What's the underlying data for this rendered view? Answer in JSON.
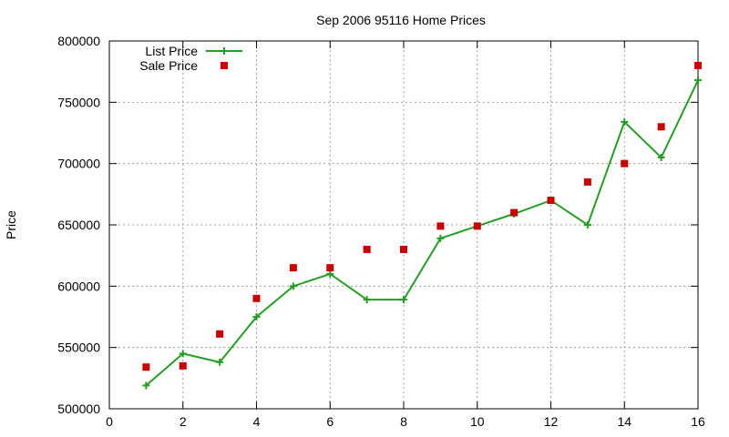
{
  "chart_data": {
    "type": "line",
    "title": "Sep 2006 95116 Home Prices",
    "xlabel": "",
    "ylabel": "Price",
    "xlim": [
      0,
      16
    ],
    "ylim": [
      500000,
      800000
    ],
    "x_ticks": [
      0,
      2,
      4,
      6,
      8,
      10,
      12,
      14,
      16
    ],
    "y_ticks": [
      500000,
      550000,
      600000,
      650000,
      700000,
      750000,
      800000
    ],
    "grid": true,
    "legend_position": "top-left",
    "series": [
      {
        "name": "List Price",
        "style": "line+cross",
        "color": "#22a022",
        "x": [
          1,
          2,
          3,
          4,
          5,
          6,
          7,
          8,
          9,
          10,
          11,
          12,
          13,
          14,
          15,
          16
        ],
        "y": [
          519000,
          545000,
          538000,
          575000,
          600000,
          610000,
          589000,
          589000,
          639000,
          649000,
          659000,
          670000,
          650000,
          734000,
          705000,
          768000
        ]
      },
      {
        "name": "Sale Price",
        "style": "square-points",
        "color": "#cc0000",
        "x": [
          1,
          2,
          3,
          4,
          5,
          6,
          7,
          8,
          9,
          10,
          11,
          12,
          13,
          14,
          15,
          16
        ],
        "y": [
          534000,
          535000,
          561000,
          590000,
          615000,
          615000,
          630000,
          630000,
          649000,
          649000,
          660000,
          670000,
          685000,
          700000,
          730000,
          780000
        ]
      }
    ]
  }
}
